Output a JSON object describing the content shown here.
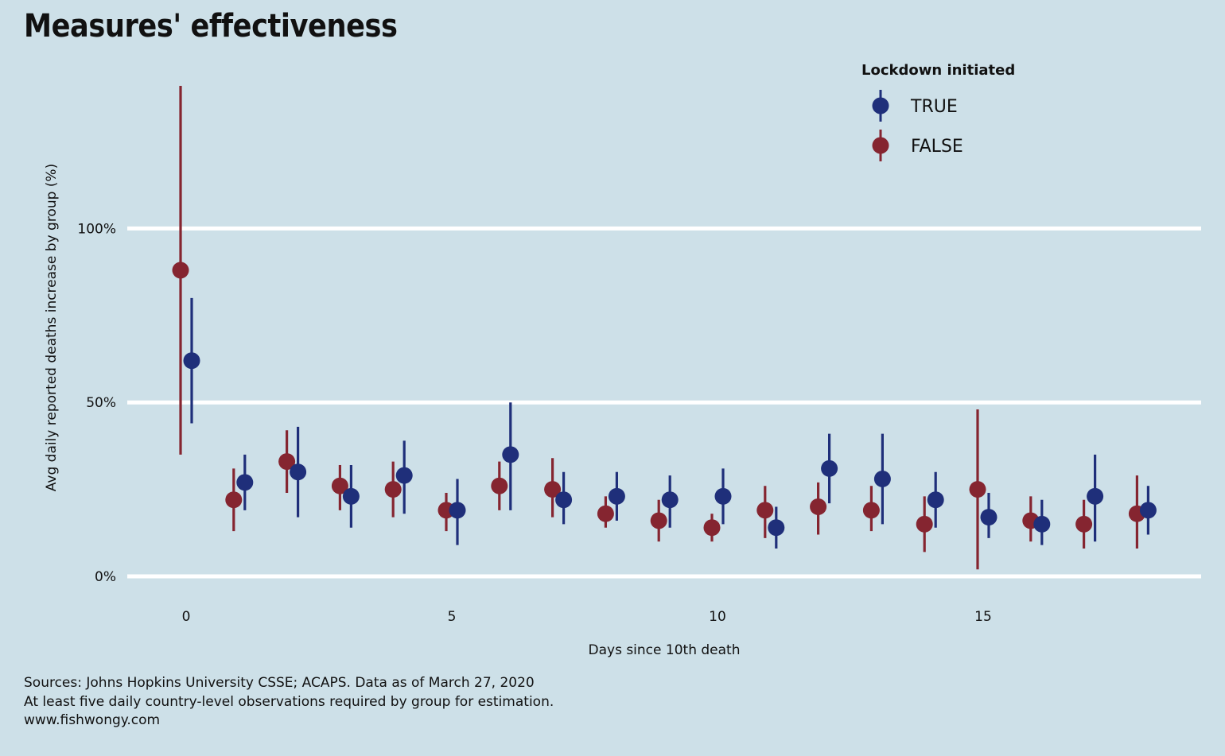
{
  "title": "Measures' effectiveness",
  "caption": {
    "line1": "Sources: Johns Hopkins University CSSE; ACAPS. Data as of March 27, 2020",
    "line2": "At least five daily country-level observations required by group for estimation.",
    "line3": "www.fishwongy.com"
  },
  "colors": {
    "background": "#cde0e8",
    "grid": "#ffffff",
    "true_series": "#1f2f7a",
    "false_series": "#852530"
  },
  "chart_data": {
    "type": "scatter",
    "subtype": "pointrange",
    "xlabel": "Days since 10th death",
    "ylabel": "Avg daily reported deaths increase by group (%)",
    "xlim": [
      -1,
      19
    ],
    "ylim": [
      -5,
      143
    ],
    "x_ticks": [
      0,
      5,
      10,
      15
    ],
    "y_ticks": [
      {
        "value": 0,
        "label": "0%"
      },
      {
        "value": 50,
        "label": "50%"
      },
      {
        "value": 100,
        "label": "100%"
      }
    ],
    "grid": "horizontal major only",
    "legend": {
      "title": "Lockdown initiated",
      "position": "top-right",
      "entries": [
        "TRUE",
        "FALSE"
      ]
    },
    "series": [
      {
        "name": "TRUE",
        "color": "#1f2f7a",
        "points": [
          {
            "x": 0,
            "y": 62,
            "low": 44,
            "high": 80
          },
          {
            "x": 1,
            "y": 27,
            "low": 19,
            "high": 35
          },
          {
            "x": 2,
            "y": 30,
            "low": 17,
            "high": 43
          },
          {
            "x": 3,
            "y": 23,
            "low": 14,
            "high": 32
          },
          {
            "x": 4,
            "y": 29,
            "low": 18,
            "high": 39
          },
          {
            "x": 5,
            "y": 19,
            "low": 9,
            "high": 28
          },
          {
            "x": 6,
            "y": 35,
            "low": 19,
            "high": 50
          },
          {
            "x": 7,
            "y": 22,
            "low": 15,
            "high": 30
          },
          {
            "x": 8,
            "y": 23,
            "low": 16,
            "high": 30
          },
          {
            "x": 9,
            "y": 22,
            "low": 14,
            "high": 29
          },
          {
            "x": 10,
            "y": 23,
            "low": 15,
            "high": 31
          },
          {
            "x": 11,
            "y": 14,
            "low": 8,
            "high": 20
          },
          {
            "x": 12,
            "y": 31,
            "low": 21,
            "high": 41
          },
          {
            "x": 13,
            "y": 28,
            "low": 15,
            "high": 41
          },
          {
            "x": 14,
            "y": 22,
            "low": 14,
            "high": 30
          },
          {
            "x": 15,
            "y": 17,
            "low": 11,
            "high": 24
          },
          {
            "x": 16,
            "y": 15,
            "low": 9,
            "high": 22
          },
          {
            "x": 17,
            "y": 23,
            "low": 10,
            "high": 35
          },
          {
            "x": 18,
            "y": 19,
            "low": 12,
            "high": 26
          }
        ]
      },
      {
        "name": "FALSE",
        "color": "#852530",
        "points": [
          {
            "x": 0,
            "y": 88,
            "low": 35,
            "high": 141
          },
          {
            "x": 1,
            "y": 22,
            "low": 13,
            "high": 31
          },
          {
            "x": 2,
            "y": 33,
            "low": 24,
            "high": 42
          },
          {
            "x": 3,
            "y": 26,
            "low": 19,
            "high": 32
          },
          {
            "x": 4,
            "y": 25,
            "low": 17,
            "high": 33
          },
          {
            "x": 5,
            "y": 19,
            "low": 13,
            "high": 24
          },
          {
            "x": 6,
            "y": 26,
            "low": 19,
            "high": 33
          },
          {
            "x": 7,
            "y": 25,
            "low": 17,
            "high": 34
          },
          {
            "x": 8,
            "y": 18,
            "low": 14,
            "high": 23
          },
          {
            "x": 9,
            "y": 16,
            "low": 10,
            "high": 22
          },
          {
            "x": 10,
            "y": 14,
            "low": 10,
            "high": 18
          },
          {
            "x": 11,
            "y": 19,
            "low": 11,
            "high": 26
          },
          {
            "x": 12,
            "y": 20,
            "low": 12,
            "high": 27
          },
          {
            "x": 13,
            "y": 19,
            "low": 13,
            "high": 26
          },
          {
            "x": 14,
            "y": 15,
            "low": 7,
            "high": 23
          },
          {
            "x": 15,
            "y": 25,
            "low": 2,
            "high": 48
          },
          {
            "x": 16,
            "y": 16,
            "low": 10,
            "high": 23
          },
          {
            "x": 17,
            "y": 15,
            "low": 8,
            "high": 22
          },
          {
            "x": 18,
            "y": 18,
            "low": 8,
            "high": 29
          }
        ]
      }
    ]
  }
}
